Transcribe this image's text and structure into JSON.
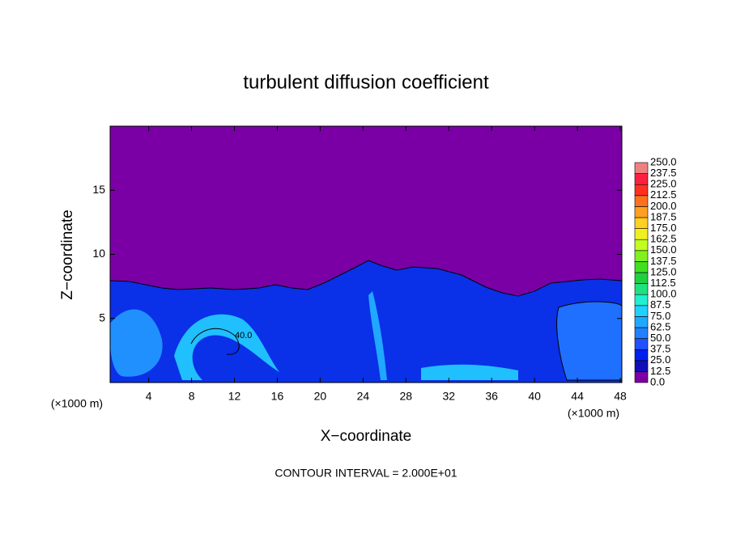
{
  "chart_data": {
    "type": "contour",
    "title": "turbulent diffusion coefficient",
    "xlabel": "X−coordinate",
    "ylabel": "Z−coordinate",
    "x_unit": "(×1000 m)",
    "footer": "CONTOUR INTERVAL = 2.000E+01",
    "contour_label": "40.0",
    "xlim": [
      0.4,
      48.15
    ],
    "xticks": [
      4,
      8,
      12,
      16,
      20,
      24,
      28,
      32,
      36,
      40,
      44,
      48
    ],
    "ylim": [
      0,
      20
    ],
    "yticks": [
      5,
      10,
      15
    ],
    "colorbar": {
      "ticks": [
        {
          "value": 0,
          "label": "0.0"
        },
        {
          "value": 12.5,
          "label": "12.5"
        },
        {
          "value": 25,
          "label": "25.0"
        },
        {
          "value": 37.5,
          "label": "37.5"
        },
        {
          "value": 50,
          "label": "50.0"
        },
        {
          "value": 62.5,
          "label": "62.5"
        },
        {
          "value": 75,
          "label": "75.0"
        },
        {
          "value": 87.5,
          "label": "87.5"
        },
        {
          "value": 100,
          "label": "100.0"
        },
        {
          "value": 112.5,
          "label": "112.5"
        },
        {
          "value": 125,
          "label": "125.0"
        },
        {
          "value": 137.5,
          "label": "137.5"
        },
        {
          "value": 150,
          "label": "150.0"
        },
        {
          "value": 162.5,
          "label": "162.5"
        },
        {
          "value": 175,
          "label": "175.0"
        },
        {
          "value": 187.5,
          "label": "187.5"
        },
        {
          "value": 200,
          "label": "200.0"
        },
        {
          "value": 212.5,
          "label": "212.5"
        },
        {
          "value": 225,
          "label": "225.0"
        },
        {
          "value": 237.5,
          "label": "237.5"
        },
        {
          "value": 250,
          "label": "250.0"
        }
      ],
      "colors": [
        "#7a00a6",
        "#1010b8",
        "#0020f0",
        "#2050ff",
        "#2080ff",
        "#20a8ff",
        "#20d0ff",
        "#20f0d0",
        "#20e080",
        "#20d040",
        "#40e020",
        "#80f020",
        "#c0ff20",
        "#f0f020",
        "#ffd020",
        "#ffa020",
        "#ff7020",
        "#ff3020",
        "#ff2040",
        "#f08080"
      ]
    }
  }
}
